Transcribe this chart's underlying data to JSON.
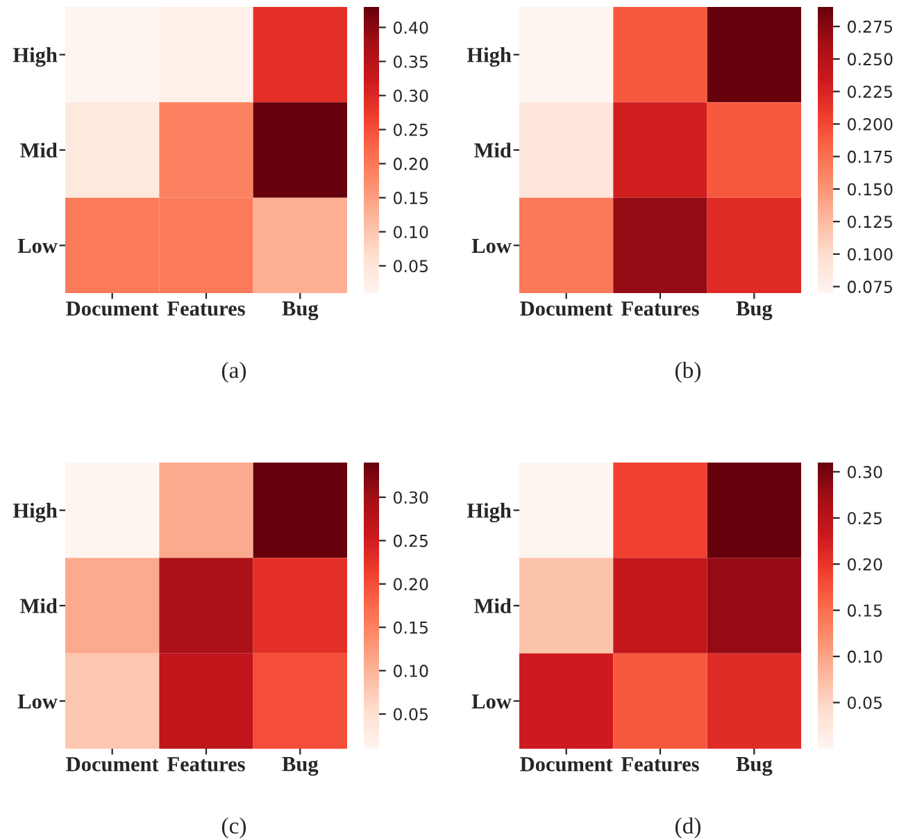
{
  "chart_data": [
    {
      "type": "heatmap",
      "title": "(a)",
      "categories": [
        "Document",
        "Features",
        "Bug"
      ],
      "y_categories": [
        "High",
        "Mid",
        "Low"
      ],
      "cells": [
        [
          0.01,
          0.02,
          0.29
        ],
        [
          0.04,
          0.19,
          0.43
        ],
        [
          0.2,
          0.2,
          0.13
        ]
      ],
      "clim": [
        0.01,
        0.43
      ],
      "cticks": [
        0.05,
        {
          "value": 0.1,
          "label": "0.10"
        },
        0.15,
        {
          "value": 0.2,
          "label": "0.20"
        },
        0.25,
        {
          "value": 0.3,
          "label": "0.30"
        },
        0.35,
        {
          "value": 0.4,
          "label": "0.40"
        }
      ]
    },
    {
      "type": "heatmap",
      "title": "(b)",
      "categories": [
        "Document",
        "Features",
        "Bug"
      ],
      "y_categories": [
        "High",
        "Mid",
        "Low"
      ],
      "cells": [
        [
          0.07,
          0.19,
          0.29
        ],
        [
          0.09,
          0.23,
          0.19
        ],
        [
          0.17,
          0.27,
          0.22
        ]
      ],
      "clim": [
        0.07,
        0.29
      ],
      "cticks": [
        0.075,
        {
          "value": 0.1,
          "label": "0.100"
        },
        0.125,
        {
          "value": 0.15,
          "label": "0.150"
        },
        0.175,
        {
          "value": 0.2,
          "label": "0.200"
        },
        0.225,
        {
          "value": 0.25,
          "label": "0.250"
        },
        0.275
      ]
    },
    {
      "type": "heatmap",
      "title": "(c)",
      "categories": [
        "Document",
        "Features",
        "Bug"
      ],
      "y_categories": [
        "High",
        "Mid",
        "Low"
      ],
      "cells": [
        [
          0.01,
          0.11,
          0.34
        ],
        [
          0.11,
          0.29,
          0.23
        ],
        [
          0.08,
          0.27,
          0.2
        ]
      ],
      "clim": [
        0.01,
        0.34
      ],
      "cticks": [
        0.05,
        {
          "value": 0.1,
          "label": "0.10"
        },
        0.15,
        {
          "value": 0.2,
          "label": "0.20"
        },
        0.25,
        {
          "value": 0.3,
          "label": "0.30"
        }
      ]
    },
    {
      "type": "heatmap",
      "title": "(d)",
      "categories": [
        "Document",
        "Features",
        "Bug"
      ],
      "y_categories": [
        "High",
        "Mid",
        "Low"
      ],
      "cells": [
        [
          0.0,
          0.19,
          0.31
        ],
        [
          0.07,
          0.24,
          0.28
        ],
        [
          0.23,
          0.17,
          0.21
        ]
      ],
      "clim": [
        0.0,
        0.31
      ],
      "cticks": [
        0.05,
        {
          "value": 0.1,
          "label": "0.10"
        },
        0.15,
        {
          "value": 0.2,
          "label": "0.20"
        },
        0.25,
        {
          "value": 0.3,
          "label": "0.30"
        }
      ]
    }
  ]
}
